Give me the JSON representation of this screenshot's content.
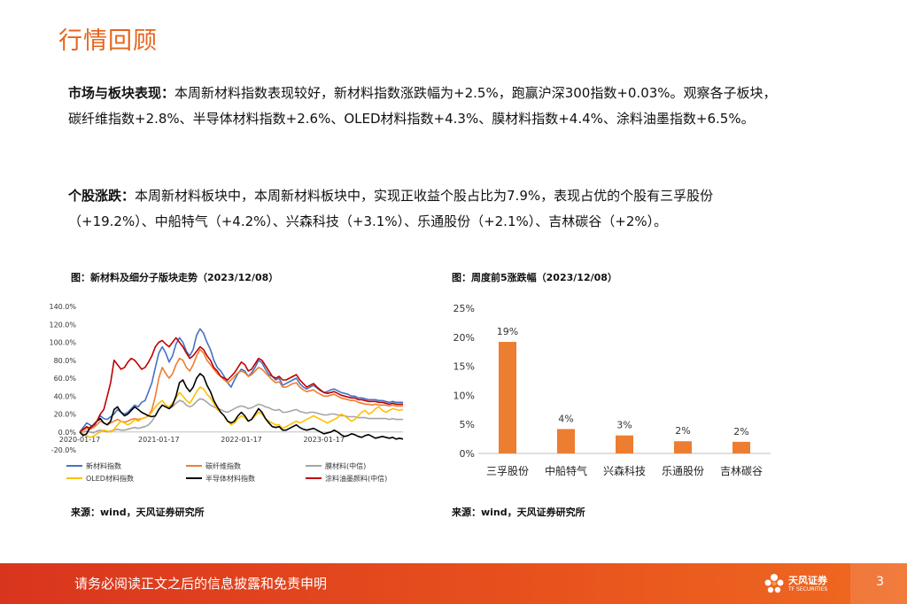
{
  "page": {
    "title": "行情回顾",
    "p1_label": "市场与板块表现：",
    "p1_text": "本周新材料指数表现较好，新材料指数涨跌幅为+2.5%，跑赢沪深300指数+0.03%。观察各子板块，碳纤维指数+2.8%、半导体材料指数+2.6%、OLED材料指数+4.3%、膜材料指数+4.4%、涂料油墨指数+6.5%。",
    "p2_label": "个股涨跌：",
    "p2_text": "本周新材料板块中，本周新材料板块中，实现正收益个股占比为7.9%，表现占优的个股有三孚股份（+19.2%）、中船特气（+4.2%）、兴森科技（+3.1%）、乐通股份（+2.1%）、吉林碳谷（+2%）。"
  },
  "figure1": {
    "caption": "图：新材料及细分子版块走势（2023/12/08）",
    "source": "来源：wind，天风证券研究所"
  },
  "figure2": {
    "caption": "图：周度前5涨跌幅（2023/12/08）",
    "source": "来源：wind，天风证券研究所"
  },
  "footer": {
    "disclaimer": "请务必阅读正文之后的信息披露和免责申明",
    "logo_name": "天风证券",
    "logo_sub": "TF SECURITIES",
    "page_number": "3"
  },
  "chart_data": [
    {
      "type": "line",
      "x_tick_labels": [
        "2020-01-17",
        "2021-01-17",
        "2022-01-17",
        "2023-01-17"
      ],
      "y_tick_labels": [
        "140.0%",
        "120.0%",
        "100.0%",
        "80.0%",
        "60.0%",
        "40.0%",
        "20.0%",
        "0.0%",
        "-20.0%"
      ],
      "ylim": [
        -20,
        140
      ],
      "legend_position": "bottom",
      "x": [
        0,
        0.5,
        1,
        1.5,
        2,
        2.5,
        3,
        3.5,
        4,
        4.5,
        5,
        5.5,
        6,
        6.5,
        7,
        7.5,
        8,
        8.5,
        9,
        9.5,
        10,
        10.5,
        11,
        11.5,
        12,
        12.5,
        13,
        13.5,
        14,
        14.5,
        15,
        15.5,
        16,
        16.5,
        17,
        17.5,
        18,
        18.5,
        19,
        19.5,
        20,
        20.5,
        21,
        21.5,
        22,
        22.5,
        23,
        23.5,
        24,
        24.5,
        25,
        25.5,
        26,
        26.5,
        27,
        27.5,
        28,
        28.5,
        29,
        29.5,
        30,
        30.5,
        31,
        31.5,
        32,
        32.5,
        33,
        33.5,
        34,
        34.5,
        35,
        35.5,
        36,
        36.5,
        37,
        37.5,
        38,
        38.5,
        39,
        39.5,
        40,
        40.5,
        41,
        41.5,
        42,
        42.5,
        43,
        43.5,
        44,
        44.5,
        45,
        45.5,
        46,
        46.5,
        47
      ],
      "series": [
        {
          "name": "新材料指数",
          "color": "#4472c4",
          "values": [
            0,
            5,
            10,
            8,
            5,
            12,
            18,
            15,
            14,
            17,
            20,
            25,
            22,
            20,
            22,
            26,
            30,
            28,
            33,
            35,
            45,
            55,
            72,
            88,
            95,
            88,
            78,
            85,
            98,
            105,
            100,
            90,
            85,
            92,
            108,
            115,
            110,
            100,
            92,
            80,
            72,
            68,
            62,
            55,
            50,
            58,
            65,
            70,
            68,
            62,
            66,
            72,
            80,
            77,
            70,
            64,
            62,
            58,
            60,
            52,
            54,
            56,
            58,
            60,
            54,
            50,
            48,
            50,
            52,
            49,
            46,
            44,
            45,
            47,
            48,
            46,
            44,
            43,
            42,
            40,
            40,
            38,
            38,
            37,
            36,
            36,
            36,
            35,
            35,
            34,
            33,
            34,
            33,
            33,
            33
          ]
        },
        {
          "name": "碳纤维指数",
          "color": "#ed7d31",
          "values": [
            0,
            2,
            4,
            3,
            5,
            8,
            12,
            10,
            8,
            10,
            12,
            14,
            12,
            11,
            12,
            14,
            15,
            14,
            15,
            16,
            18,
            25,
            40,
            60,
            72,
            65,
            60,
            65,
            75,
            82,
            80,
            72,
            68,
            75,
            85,
            92,
            88,
            80,
            75,
            70,
            65,
            62,
            58,
            55,
            58,
            62,
            66,
            68,
            66,
            62,
            64,
            68,
            72,
            70,
            66,
            62,
            58,
            55,
            56,
            50,
            50,
            52,
            54,
            55,
            50,
            47,
            45,
            46,
            47,
            44,
            42,
            40,
            40,
            41,
            42,
            40,
            38,
            37,
            36,
            35,
            35,
            33,
            32,
            31,
            31,
            30,
            31,
            30,
            30,
            30,
            29,
            30,
            29,
            29,
            29
          ]
        },
        {
          "name": "膜材料(中信)",
          "color": "#a5a5a5",
          "values": [
            0,
            0,
            1,
            0,
            -1,
            1,
            2,
            1,
            0,
            1,
            2,
            3,
            2,
            2,
            3,
            4,
            5,
            4,
            5,
            6,
            8,
            12,
            18,
            25,
            30,
            28,
            26,
            28,
            32,
            35,
            34,
            30,
            28,
            30,
            34,
            37,
            36,
            33,
            30,
            28,
            26,
            25,
            23,
            22,
            24,
            26,
            28,
            29,
            28,
            26,
            27,
            29,
            31,
            30,
            28,
            27,
            25,
            24,
            25,
            22,
            22,
            23,
            24,
            25,
            23,
            22,
            21,
            22,
            22,
            21,
            20,
            19,
            19,
            20,
            20,
            19,
            18,
            18,
            17,
            17,
            17,
            16,
            16,
            16,
            15,
            15,
            15,
            15,
            15,
            15,
            14,
            15,
            14,
            14,
            14
          ]
        },
        {
          "name": "OLED材料指数",
          "color": "#ffc000",
          "values": [
            0,
            -2,
            -4,
            -6,
            -5,
            -2,
            0,
            2,
            1,
            0,
            3,
            8,
            12,
            10,
            8,
            10,
            14,
            12,
            15,
            16,
            18,
            22,
            28,
            32,
            35,
            30,
            28,
            32,
            38,
            44,
            40,
            35,
            32,
            38,
            45,
            50,
            48,
            42,
            38,
            32,
            25,
            22,
            18,
            12,
            8,
            10,
            15,
            18,
            16,
            12,
            14,
            18,
            22,
            20,
            15,
            12,
            10,
            8,
            8,
            4,
            6,
            8,
            10,
            12,
            10,
            12,
            14,
            16,
            18,
            16,
            14,
            12,
            10,
            12,
            14,
            16,
            20,
            18,
            15,
            12,
            14,
            18,
            22,
            24,
            20,
            22,
            26,
            28,
            24,
            22,
            24,
            26,
            25,
            24,
            25
          ]
        },
        {
          "name": "半导体材料指数",
          "color": "#000000",
          "values": [
            0,
            -4,
            -2,
            5,
            8,
            12,
            15,
            10,
            8,
            12,
            25,
            28,
            22,
            18,
            20,
            24,
            28,
            25,
            22,
            20,
            18,
            17,
            18,
            25,
            30,
            28,
            26,
            30,
            40,
            55,
            58,
            50,
            45,
            50,
            60,
            65,
            62,
            52,
            45,
            35,
            28,
            22,
            18,
            12,
            10,
            12,
            18,
            22,
            18,
            12,
            14,
            20,
            26,
            22,
            15,
            10,
            6,
            5,
            6,
            2,
            2,
            4,
            6,
            8,
            5,
            3,
            2,
            3,
            4,
            2,
            0,
            -2,
            -1,
            0,
            2,
            0,
            -3,
            -5,
            -4,
            -2,
            -3,
            -5,
            -6,
            -4,
            -3,
            -5,
            -7,
            -6,
            -5,
            -6,
            -7,
            -6,
            -8,
            -7,
            -8
          ]
        },
        {
          "name": "涂料油墨颜料(中信)",
          "color": "#c00000",
          "values": [
            0,
            3,
            6,
            4,
            8,
            12,
            20,
            25,
            40,
            55,
            80,
            75,
            70,
            72,
            78,
            82,
            80,
            75,
            70,
            72,
            78,
            85,
            95,
            100,
            102,
            98,
            95,
            100,
            105,
            100,
            95,
            88,
            82,
            85,
            90,
            95,
            92,
            85,
            80,
            72,
            68,
            62,
            60,
            58,
            62,
            66,
            72,
            78,
            75,
            68,
            70,
            76,
            82,
            80,
            74,
            68,
            62,
            60,
            62,
            58,
            58,
            60,
            62,
            64,
            58,
            54,
            50,
            52,
            54,
            50,
            47,
            44,
            43,
            44,
            45,
            43,
            41,
            40,
            39,
            38,
            38,
            36,
            36,
            35,
            34,
            34,
            34,
            33,
            33,
            32,
            31,
            32,
            31,
            31,
            31
          ]
        }
      ]
    },
    {
      "type": "bar",
      "categories": [
        "三孚股份",
        "中船特气",
        "兴森科技",
        "乐通股份",
        "吉林碳谷"
      ],
      "values": [
        19.2,
        4.2,
        3.1,
        2.1,
        2.0
      ],
      "data_labels": [
        "19%",
        "4%",
        "3%",
        "2%",
        "2%"
      ],
      "y_tick_labels": [
        "25%",
        "20%",
        "15%",
        "10%",
        "5%",
        "0%"
      ],
      "ylim": [
        0,
        25
      ],
      "bar_color": "#ed7d31"
    }
  ]
}
